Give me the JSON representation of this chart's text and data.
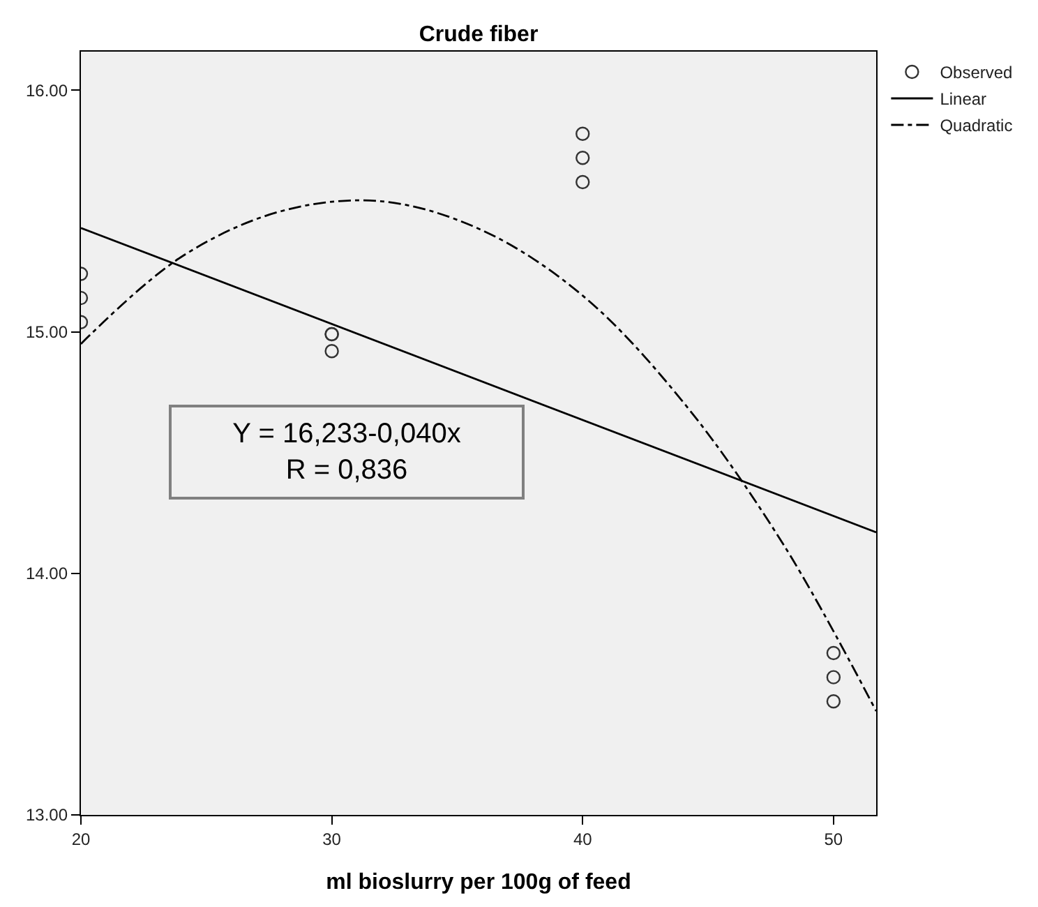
{
  "chart_data": {
    "type": "scatter",
    "title": "Crude fiber",
    "xlabel": "ml bioslurry per 100g of feed",
    "xlim": [
      20,
      51.7
    ],
    "xticks": [
      20,
      30,
      40,
      50
    ],
    "ylim": [
      13,
      16.16
    ],
    "yticks": [
      {
        "value": 13,
        "label": "13.00"
      },
      {
        "value": 14,
        "label": "14.00"
      },
      {
        "value": 15,
        "label": "15.00"
      },
      {
        "value": 16,
        "label": "16.00"
      }
    ],
    "grid": false,
    "legend": "top right",
    "series": [
      {
        "name": "Observed",
        "marker": "circle",
        "color": "#333333",
        "x": [
          20,
          20,
          20,
          30,
          30,
          30,
          40,
          40,
          40,
          50,
          50,
          50
        ],
        "values": [
          15.24,
          15.14,
          15.04,
          14.99,
          14.99,
          14.92,
          15.82,
          15.72,
          15.62,
          13.67,
          13.57,
          13.47
        ]
      },
      {
        "name": "Linear",
        "type": "line",
        "line_style": "solid",
        "color": "#000000",
        "x": [
          20,
          51.7
        ],
        "values": [
          15.43,
          14.17
        ]
      },
      {
        "name": "Quadratic",
        "type": "line",
        "line_style": "dashdot",
        "color": "#000000",
        "x": [
          20,
          24,
          28,
          32,
          36,
          40,
          44,
          48,
          51.7
        ],
        "values": [
          14.95,
          15.31,
          15.5,
          15.54,
          15.42,
          15.15,
          14.71,
          14.12,
          13.43
        ]
      }
    ],
    "annotations": [
      "Y = 16,233-0,040x\nR = 0,836"
    ]
  }
}
